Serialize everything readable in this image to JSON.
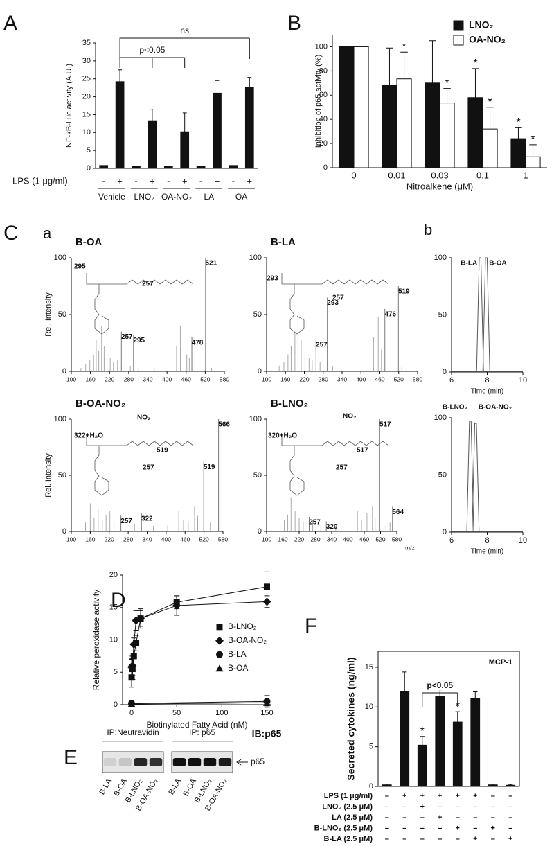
{
  "chart_data": [
    {
      "type": "bar",
      "panel": "A",
      "ylabel": "NF-κB-Luc activity (A.U.)",
      "ylim": [
        0,
        35
      ],
      "yticks": [
        0,
        5,
        10,
        15,
        20,
        25,
        30,
        35
      ],
      "category_label": "LPS (1 μg/ml)",
      "categories": [
        "-",
        "+",
        "-",
        "+",
        "-",
        "+",
        "-",
        "+",
        "-",
        "+"
      ],
      "groups": [
        "Vehicle",
        "LNO₂",
        "OA-NO₂",
        "LA",
        "OA"
      ],
      "values": [
        0.8,
        24.2,
        0.5,
        13.3,
        0.5,
        10.2,
        0.6,
        21.0,
        0.8,
        22.6
      ],
      "errors": [
        null,
        3.3,
        null,
        3.2,
        null,
        5.3,
        null,
        3.5,
        null,
        2.8
      ],
      "color": "#111111",
      "annotations": [
        "p<0.05",
        "ns"
      ]
    },
    {
      "type": "bar",
      "panel": "B",
      "ylabel": "Inhibition of p65 activity (%)",
      "xlabel": "Nitroalkene (μM)",
      "ylim": [
        0,
        110
      ],
      "yticks": [
        0,
        20,
        40,
        60,
        80,
        100
      ],
      "categories": [
        "0",
        "0.01",
        "0.03",
        "0.1",
        "1"
      ],
      "legend": "top-right",
      "series": [
        {
          "name": "LNO₂",
          "color": "#111111",
          "values": [
            100,
            68,
            70,
            58,
            24
          ],
          "errors": [
            null,
            31,
            35,
            24,
            9
          ],
          "markers": [
            null,
            null,
            null,
            "*",
            "*"
          ]
        },
        {
          "name": "OA-NO₂",
          "color": "#ffffff",
          "values": [
            100,
            73.5,
            53.5,
            32,
            9
          ],
          "errors": [
            null,
            22,
            12,
            18,
            10
          ],
          "markers": [
            null,
            "*",
            "*",
            "*",
            "*"
          ]
        }
      ]
    },
    {
      "type": "spectrum",
      "panel": "C",
      "subpanel": "a",
      "title": "B-OA",
      "ylabel": "Rel. Intensity",
      "xlim": [
        100,
        580
      ],
      "xticks": [
        100,
        160,
        220,
        280,
        340,
        400,
        460,
        520,
        580
      ],
      "ylim": [
        0,
        100
      ],
      "yticks": [
        0,
        50,
        100
      ],
      "peaks": {
        "x": [
          130,
          145,
          158,
          170,
          178,
          186,
          195,
          203,
          212,
          222,
          232,
          245,
          268,
          285,
          310,
          360,
          430,
          442,
          462,
          470,
          540
        ],
        "values": [
          3,
          6,
          10,
          14,
          28,
          18,
          40,
          22,
          16,
          12,
          8,
          10,
          6,
          5,
          3,
          3,
          22,
          40,
          15,
          12,
          3
        ]
      },
      "labeled_peaks": {
        "x": [
          257,
          295,
          478,
          521
        ],
        "values": [
          35,
          32,
          30,
          100
        ]
      },
      "fragments": [
        "295",
        "257"
      ]
    },
    {
      "type": "spectrum",
      "title": "B-LA",
      "xlim": [
        100,
        580
      ],
      "xticks": [
        100,
        160,
        220,
        280,
        340,
        400,
        460,
        520,
        580
      ],
      "ylim": [
        0,
        100
      ],
      "yticks": [
        0,
        50,
        100
      ],
      "peaks": {
        "x": [
          140,
          155,
          168,
          178,
          190,
          200,
          210,
          222,
          235,
          245,
          270,
          310,
          440,
          455,
          465,
          530
        ],
        "values": [
          5,
          8,
          15,
          22,
          35,
          50,
          28,
          18,
          12,
          10,
          8,
          5,
          30,
          48,
          20,
          4
        ]
      },
      "labeled_peaks": {
        "x": [
          257,
          293,
          476,
          519
        ],
        "values": [
          28,
          65,
          55,
          75
        ]
      },
      "fragments": [
        "293",
        "257"
      ]
    },
    {
      "type": "spectrum",
      "title": "B-OA-NO₂",
      "ylabel": "Rel. Intensity",
      "xlim": [
        100,
        580
      ],
      "xticks": [
        100,
        160,
        220,
        280,
        340,
        400,
        460,
        520,
        580
      ],
      "ylim": [
        0,
        100
      ],
      "yticks": [
        0,
        50,
        100
      ],
      "peaks": {
        "x": [
          145,
          160,
          172,
          185,
          198,
          210,
          222,
          235,
          248,
          270,
          300,
          360,
          405,
          440,
          455,
          470,
          490,
          500,
          540
        ],
        "values": [
          8,
          25,
          12,
          20,
          10,
          15,
          18,
          8,
          6,
          10,
          7,
          5,
          6,
          18,
          10,
          9,
          22,
          14,
          8
        ]
      },
      "labeled_peaks": {
        "x": [
          257,
          322,
          519,
          566
        ],
        "values": [
          14,
          16,
          62,
          100
        ]
      },
      "fragments": [
        "322+H₂O",
        "NO₂",
        "519",
        "257"
      ]
    },
    {
      "type": "spectrum",
      "title": "B-LNO₂",
      "xlabel": "m/z",
      "xlim": [
        100,
        580
      ],
      "xticks": [
        100,
        160,
        220,
        280,
        340,
        400,
        460,
        520,
        580
      ],
      "ylim": [
        0,
        100
      ],
      "yticks": [
        0,
        50,
        100
      ],
      "peaks": {
        "x": [
          150,
          165,
          178,
          190,
          205,
          220,
          235,
          270,
          300,
          355,
          400,
          435,
          450,
          470,
          490,
          500,
          540,
          555
        ],
        "values": [
          6,
          10,
          15,
          30,
          18,
          12,
          8,
          10,
          6,
          5,
          6,
          18,
          10,
          16,
          22,
          12,
          6,
          8
        ]
      },
      "labeled_peaks": {
        "x": [
          257,
          320,
          517,
          564
        ],
        "values": [
          13,
          9,
          100,
          22
        ]
      },
      "fragments": [
        "320+H₂O",
        "NO₂",
        "517",
        "257"
      ]
    },
    {
      "type": "chromatogram",
      "subpanel": "b",
      "xlabel": "Time (min)",
      "xlim": [
        6,
        10
      ],
      "xticks": [
        6,
        8,
        10
      ],
      "ylim": [
        0,
        100
      ],
      "yticks": [
        0,
        50,
        100
      ],
      "series": [
        {
          "name": "B-LA",
          "x": 7.6,
          "value": 100
        },
        {
          "name": "B-OA",
          "x": 7.95,
          "value": 100
        }
      ]
    },
    {
      "type": "chromatogram",
      "xlabel": "Time (min)",
      "xlim": [
        6,
        10
      ],
      "xticks": [
        6,
        8,
        10
      ],
      "ylim": [
        0,
        100
      ],
      "yticks": [
        0,
        50,
        100
      ],
      "series": [
        {
          "name": "B-LNO₂",
          "x": 7.05,
          "value": 97
        },
        {
          "name": "B-OA-NO₂",
          "x": 7.35,
          "value": 95
        }
      ]
    },
    {
      "type": "line",
      "panel": "D",
      "xlabel": "Biotinylated Fatty Acid (nM)",
      "ylabel": "Relative peroxidase activity",
      "xlim": [
        -10,
        155
      ],
      "xticks": [
        0,
        50,
        100,
        150
      ],
      "ylim": [
        0,
        20
      ],
      "yticks": [
        0,
        5,
        10,
        15,
        20
      ],
      "legend": "center-right",
      "series": [
        {
          "name": "B-LNO₂",
          "marker": "square",
          "color": "#111111",
          "x": [
            0,
            1,
            2.5,
            5,
            10,
            50,
            150
          ],
          "values": [
            4.2,
            5.5,
            7.5,
            9.5,
            13.3,
            15.8,
            18.2
          ],
          "errors": [
            1.5,
            1.6,
            2,
            1.2,
            1.2,
            1,
            2.3
          ]
        },
        {
          "name": "B-OA-NO₂",
          "marker": "diamond",
          "color": "#111111",
          "x": [
            0,
            1,
            2.5,
            5,
            10,
            50,
            150
          ],
          "values": [
            5.8,
            6,
            9.3,
            13,
            13.3,
            15.3,
            15.9
          ],
          "errors": [
            1.2,
            1.5,
            1,
            1.5,
            1.5,
            1.5,
            0.9
          ]
        },
        {
          "name": "B-LA",
          "marker": "circle",
          "color": "#111111",
          "x": [
            0,
            150
          ],
          "values": [
            0.2,
            0.5
          ],
          "errors": [
            0.3,
            0.9
          ]
        },
        {
          "name": "B-OA",
          "marker": "triangle",
          "color": "#111111",
          "x": [
            0,
            150
          ],
          "values": [
            0.1,
            0.3
          ],
          "errors": [
            0.2,
            0.5
          ]
        }
      ]
    },
    {
      "type": "blot",
      "panel": "E",
      "probe": "IB:p65",
      "band_label": "p65",
      "groups": [
        {
          "name": "IP:Neutravidin",
          "lanes": [
            "B-LA",
            "B-OA",
            "B-LNO₂",
            "B-OA-NO₂"
          ],
          "intensity": [
            0.1,
            0.15,
            0.9,
            0.85
          ]
        },
        {
          "name": "IP: p65",
          "lanes": [
            "B-LA",
            "B-OA",
            "B-LNO₂",
            "B-OA-NO₂"
          ],
          "intensity": [
            1,
            1,
            1,
            0.95
          ]
        }
      ]
    },
    {
      "type": "bar",
      "panel": "F",
      "frame": true,
      "ylabel": "Secreted cytokines (ng/ml)",
      "subtitle": "MCP-1",
      "ylim": [
        0,
        17
      ],
      "yticks": [
        0,
        5,
        10,
        15
      ],
      "values": [
        0.2,
        11.9,
        5.2,
        11.3,
        8.1,
        11.1,
        0.2,
        0.15
      ],
      "errors": [
        0.1,
        2.5,
        1.1,
        0.7,
        1.3,
        0.8,
        0.1,
        0.1
      ],
      "markers": [
        null,
        null,
        "*",
        null,
        "*",
        null,
        null,
        null
      ],
      "color": "#111111",
      "annotations": [
        "p<0.05"
      ],
      "conditions": [
        {
          "label": "LPS (1 μg/ml)",
          "signs": [
            "–",
            "+",
            "+",
            "+",
            "+",
            "+",
            "–",
            "–"
          ]
        },
        {
          "label": "LNO₂ (2.5 μM)",
          "signs": [
            "–",
            "–",
            "+",
            "–",
            "–",
            "–",
            "–",
            "–"
          ]
        },
        {
          "label": "LA (2.5 μM)",
          "signs": [
            "–",
            "–",
            "–",
            "+",
            "–",
            "–",
            "–",
            "–"
          ]
        },
        {
          "label": "B-LNO₂ (2.5 μM)",
          "signs": [
            "–",
            "–",
            "–",
            "–",
            "+",
            "–",
            "+",
            "–"
          ]
        },
        {
          "label": "B-LA (2.5 μM)",
          "signs": [
            "–",
            "–",
            "–",
            "–",
            "–",
            "+",
            "–",
            "+"
          ]
        }
      ]
    }
  ]
}
